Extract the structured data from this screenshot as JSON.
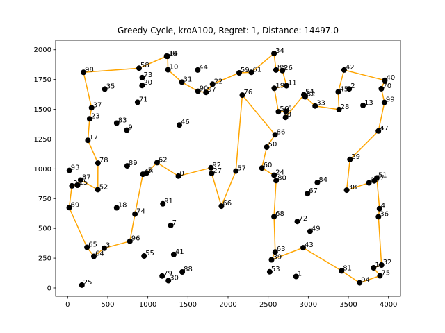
{
  "chart_data": {
    "type": "scatter",
    "title": "Greedy Cycle, kroA100, Regret: 1, Distance: 14497.0",
    "xlabel": "",
    "ylabel": "",
    "xlim": [
      -150,
      4150
    ],
    "ylim": [
      -70,
      2080
    ],
    "xticks": [
      0,
      500,
      1000,
      1500,
      2000,
      2500,
      3000,
      3500,
      4000
    ],
    "yticks": [
      0,
      250,
      500,
      750,
      1000,
      1250,
      1500,
      1750,
      2000
    ],
    "grid": false,
    "colors": {
      "points": "#000000",
      "tour": "#ffa500",
      "axes": "#000000",
      "background": "#ffffff"
    },
    "points": [
      {
        "id": "0",
        "x": 1380,
        "y": 939
      },
      {
        "id": "1",
        "x": 2848,
        "y": 96
      },
      {
        "id": "2",
        "x": 3510,
        "y": 1671
      },
      {
        "id": "3",
        "x": 457,
        "y": 334
      },
      {
        "id": "4",
        "x": 3888,
        "y": 666
      },
      {
        "id": "5",
        "x": 984,
        "y": 965
      },
      {
        "id": "6",
        "x": 2721,
        "y": 1482
      },
      {
        "id": "7",
        "x": 1286,
        "y": 525
      },
      {
        "id": "8",
        "x": 2716,
        "y": 1432
      },
      {
        "id": "9",
        "x": 738,
        "y": 1325
      },
      {
        "id": "10",
        "x": 1251,
        "y": 1832
      },
      {
        "id": "11",
        "x": 2728,
        "y": 1698
      },
      {
        "id": "12",
        "x": 3815,
        "y": 169
      },
      {
        "id": "13",
        "x": 3683,
        "y": 1533
      },
      {
        "id": "14",
        "x": 1247,
        "y": 1945
      },
      {
        "id": "15",
        "x": 123,
        "y": 862
      },
      {
        "id": "16",
        "x": 1234,
        "y": 1946
      },
      {
        "id": "17",
        "x": 252,
        "y": 1240
      },
      {
        "id": "18",
        "x": 611,
        "y": 673
      },
      {
        "id": "19",
        "x": 2576,
        "y": 1676
      },
      {
        "id": "20",
        "x": 928,
        "y": 1700
      },
      {
        "id": "21",
        "x": 53,
        "y": 857
      },
      {
        "id": "22",
        "x": 1807,
        "y": 1711
      },
      {
        "id": "23",
        "x": 274,
        "y": 1420
      },
      {
        "id": "24",
        "x": 2574,
        "y": 946
      },
      {
        "id": "25",
        "x": 178,
        "y": 24
      },
      {
        "id": "26",
        "x": 2678,
        "y": 1825
      },
      {
        "id": "27",
        "x": 1795,
        "y": 962
      },
      {
        "id": "28",
        "x": 3384,
        "y": 1498
      },
      {
        "id": "29",
        "x": 3520,
        "y": 1079
      },
      {
        "id": "30",
        "x": 1256,
        "y": 61
      },
      {
        "id": "31",
        "x": 1424,
        "y": 1728
      },
      {
        "id": "32",
        "x": 3913,
        "y": 192
      },
      {
        "id": "33",
        "x": 3085,
        "y": 1528
      },
      {
        "id": "34",
        "x": 2573,
        "y": 1969
      },
      {
        "id": "35",
        "x": 463,
        "y": 1670
      },
      {
        "id": "36",
        "x": 3875,
        "y": 598
      },
      {
        "id": "37",
        "x": 298,
        "y": 1513
      },
      {
        "id": "38",
        "x": 3479,
        "y": 821
      },
      {
        "id": "39",
        "x": 2542,
        "y": 236
      },
      {
        "id": "40",
        "x": 3955,
        "y": 1743
      },
      {
        "id": "41",
        "x": 1323,
        "y": 280
      },
      {
        "id": "42",
        "x": 3447,
        "y": 1830
      },
      {
        "id": "43",
        "x": 2936,
        "y": 337
      },
      {
        "id": "44",
        "x": 1621,
        "y": 1830
      },
      {
        "id": "45",
        "x": 3373,
        "y": 1646
      },
      {
        "id": "46",
        "x": 1393,
        "y": 1368
      },
      {
        "id": "47",
        "x": 3874,
        "y": 1318
      },
      {
        "id": "48",
        "x": 938,
        "y": 955
      },
      {
        "id": "49",
        "x": 3022,
        "y": 474
      },
      {
        "id": "50",
        "x": 2482,
        "y": 1183
      },
      {
        "id": "51",
        "x": 3854,
        "y": 923
      },
      {
        "id": "52",
        "x": 376,
        "y": 825
      },
      {
        "id": "53",
        "x": 2519,
        "y": 135
      },
      {
        "id": "54",
        "x": 2945,
        "y": 1622
      },
      {
        "id": "55",
        "x": 953,
        "y": 268
      },
      {
        "id": "56",
        "x": 2628,
        "y": 1479
      },
      {
        "id": "57",
        "x": 2097,
        "y": 981
      },
      {
        "id": "58",
        "x": 890,
        "y": 1846
      },
      {
        "id": "59",
        "x": 2139,
        "y": 1806
      },
      {
        "id": "60",
        "x": 2421,
        "y": 1007
      },
      {
        "id": "61",
        "x": 2290,
        "y": 1810
      },
      {
        "id": "62",
        "x": 1115,
        "y": 1052
      },
      {
        "id": "63",
        "x": 2588,
        "y": 302
      },
      {
        "id": "64",
        "x": 327,
        "y": 265
      },
      {
        "id": "65",
        "x": 241,
        "y": 341
      },
      {
        "id": "66",
        "x": 1917,
        "y": 687
      },
      {
        "id": "67",
        "x": 2991,
        "y": 792
      },
      {
        "id": "68",
        "x": 2573,
        "y": 599
      },
      {
        "id": "69",
        "x": 19,
        "y": 674
      },
      {
        "id": "70",
        "x": 3911,
        "y": 1673
      },
      {
        "id": "71",
        "x": 872,
        "y": 1559
      },
      {
        "id": "72",
        "x": 2863,
        "y": 558
      },
      {
        "id": "73",
        "x": 929,
        "y": 1766
      },
      {
        "id": "74",
        "x": 839,
        "y": 620
      },
      {
        "id": "75",
        "x": 3893,
        "y": 102
      },
      {
        "id": "76",
        "x": 2178,
        "y": 1619
      },
      {
        "id": "77",
        "x": 3822,
        "y": 899
      },
      {
        "id": "78",
        "x": 378,
        "y": 1048
      },
      {
        "id": "79",
        "x": 1178,
        "y": 100
      },
      {
        "id": "80",
        "x": 2599,
        "y": 901
      },
      {
        "id": "81",
        "x": 3416,
        "y": 143
      },
      {
        "id": "82",
        "x": 2961,
        "y": 1605
      },
      {
        "id": "83",
        "x": 611,
        "y": 1384
      },
      {
        "id": "84",
        "x": 3113,
        "y": 885
      },
      {
        "id": "85",
        "x": 2597,
        "y": 1830
      },
      {
        "id": "86",
        "x": 2586,
        "y": 1286
      },
      {
        "id": "87",
        "x": 161,
        "y": 906
      },
      {
        "id": "88",
        "x": 1429,
        "y": 134
      },
      {
        "id": "89",
        "x": 742,
        "y": 1025
      },
      {
        "id": "90",
        "x": 1625,
        "y": 1651
      },
      {
        "id": "91",
        "x": 1187,
        "y": 706
      },
      {
        "id": "92",
        "x": 1787,
        "y": 1009
      },
      {
        "id": "93",
        "x": 22,
        "y": 987
      },
      {
        "id": "94",
        "x": 3640,
        "y": 43
      },
      {
        "id": "95",
        "x": 3756,
        "y": 882
      },
      {
        "id": "96",
        "x": 776,
        "y": 392
      },
      {
        "id": "97",
        "x": 1724,
        "y": 1642
      },
      {
        "id": "98",
        "x": 198,
        "y": 1810
      },
      {
        "id": "99",
        "x": 3950,
        "y": 1558
      }
    ],
    "tour": [
      "98",
      "58",
      "16",
      "14",
      "10",
      "31",
      "90",
      "97",
      "22",
      "59",
      "61",
      "34",
      "85",
      "26",
      "11",
      "19",
      "56",
      "6",
      "8",
      "54",
      "82",
      "33",
      "28",
      "45",
      "42",
      "40",
      "70",
      "99",
      "47",
      "29",
      "38",
      "95",
      "77",
      "51",
      "4",
      "36",
      "32",
      "12",
      "75",
      "94",
      "81",
      "43",
      "39",
      "63",
      "68",
      "80",
      "24",
      "60",
      "50",
      "86",
      "76",
      "57",
      "66",
      "27",
      "92",
      "0",
      "62",
      "5",
      "48",
      "74",
      "96",
      "3",
      "64",
      "65",
      "69",
      "21",
      "15",
      "87",
      "52",
      "78",
      "17",
      "23",
      "37",
      "98"
    ]
  }
}
